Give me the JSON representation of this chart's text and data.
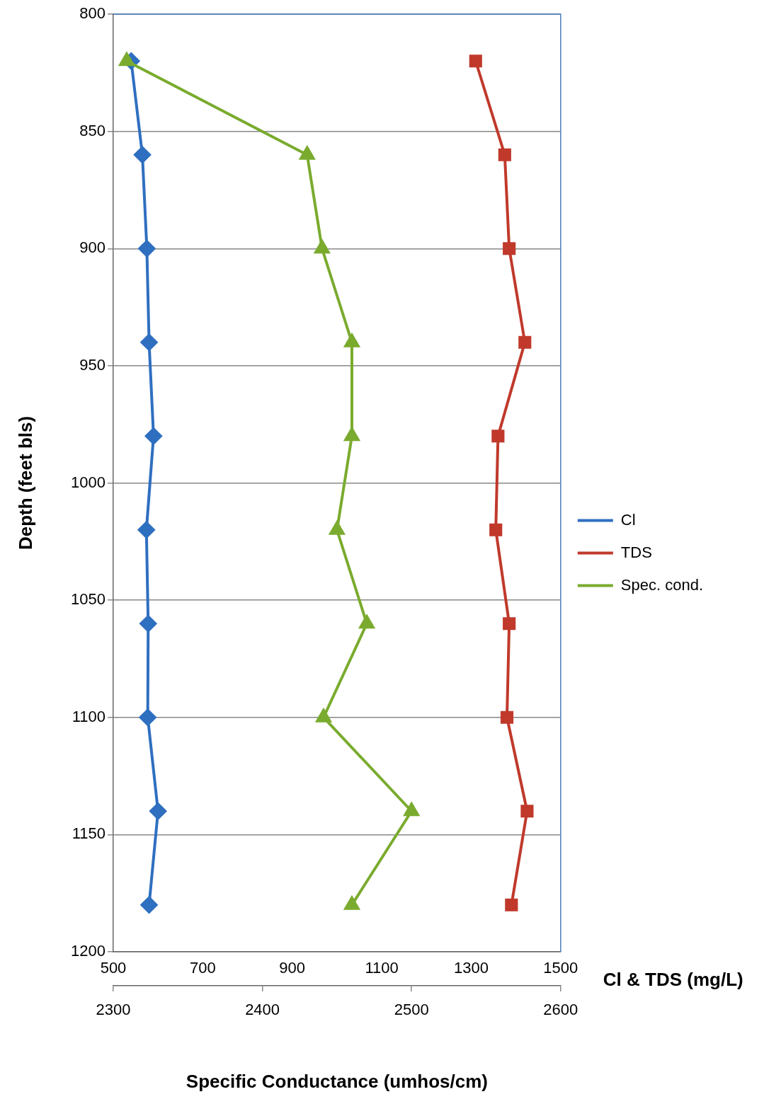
{
  "chart_data": {
    "type": "line",
    "xlabel": "Cl & TDS (mg/L)",
    "x2label": "Specific Conductance (umhos/cm)",
    "ylabel": "Depth (feet bls)",
    "xlim": [
      500,
      1500
    ],
    "xticks": [
      500,
      700,
      900,
      1100,
      1300,
      1500
    ],
    "x2lim": [
      2300,
      2600
    ],
    "x2ticks": [
      2300,
      2400,
      2500,
      2600
    ],
    "ylim": [
      1200,
      800
    ],
    "yticks": [
      800,
      850,
      900,
      950,
      1000,
      1050,
      1100,
      1150,
      1200
    ],
    "grid": "y",
    "legend": "right",
    "series": [
      {
        "name": "Cl",
        "color": "#2f6fc0",
        "marker": "diamond",
        "x": [
          540,
          565,
          575,
          580,
          590,
          574,
          578,
          577,
          600,
          580
        ],
        "values": [
          820,
          860,
          900,
          940,
          980,
          1020,
          1060,
          1100,
          1140,
          1180
        ]
      },
      {
        "name": "TDS",
        "color": "#c0392b",
        "marker": "square",
        "x": [
          1310,
          1375,
          1385,
          1420,
          1360,
          1355,
          1385,
          1380,
          1425,
          1390
        ],
        "values": [
          820,
          860,
          900,
          940,
          980,
          1020,
          1060,
          1100,
          1140,
          1180
        ]
      },
      {
        "name": "Spec. cond.",
        "color": "#7aab2e",
        "marker": "triangle",
        "axis": "x2",
        "x": [
          2309,
          2430,
          2440,
          2460,
          2460,
          2450,
          2470,
          2441,
          2500,
          2460
        ],
        "values": [
          820,
          860,
          900,
          940,
          980,
          1020,
          1060,
          1100,
          1140,
          1180
        ]
      }
    ]
  }
}
